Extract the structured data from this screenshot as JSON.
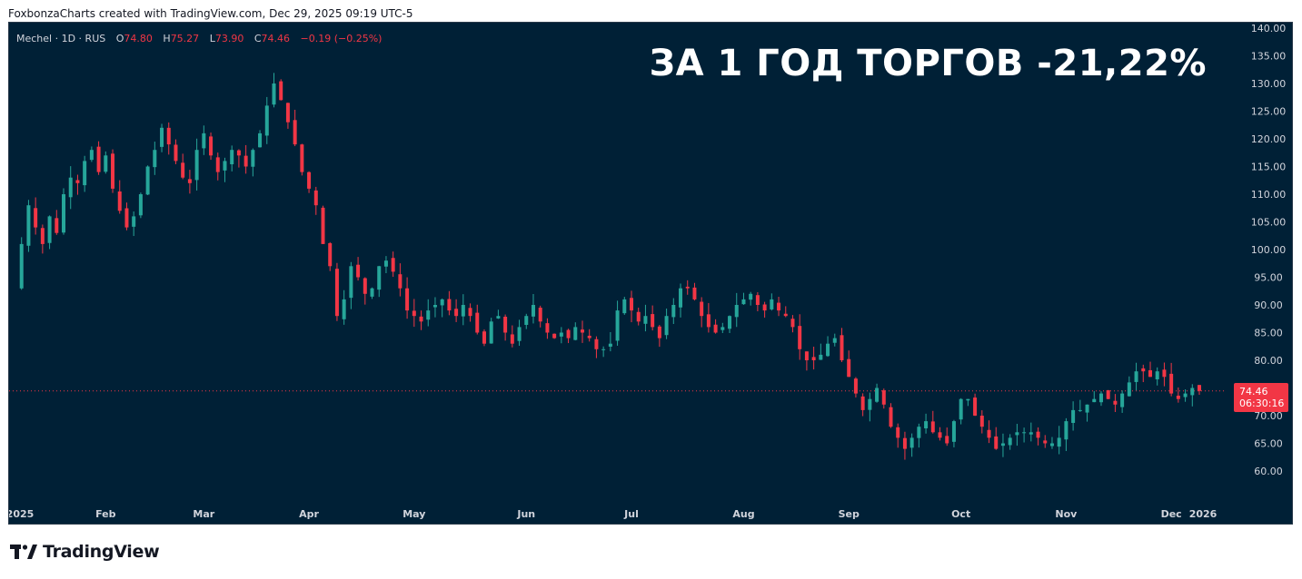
{
  "credit": "FoxbonzaCharts created with TradingView.com, Dec 29, 2025 09:19 UTC-5",
  "legend": {
    "symbol": "Mechel · 1D · RUS",
    "o_label": "O",
    "o": "74.80",
    "h_label": "H",
    "h": "75.27",
    "l_label": "L",
    "l": "73.90",
    "c_label": "C",
    "c": "74.46",
    "change": "−0.19 (−0.25%)"
  },
  "headline": "ЗА 1 ГОД ТОРГОВ -21,22%",
  "last_price": {
    "price": "74.46",
    "countdown": "06:30:16"
  },
  "logo": {
    "icon": "tradingview-logo-icon",
    "text": "TradingView"
  },
  "colors": {
    "background": "#002036",
    "up": "#26a69a",
    "down": "#f23645",
    "text": "#d1d4dc"
  },
  "chart_data": {
    "type": "candlestick",
    "ylim": [
      56,
      140
    ],
    "y_ticks": [
      "140.00",
      "135.00",
      "130.00",
      "125.00",
      "120.00",
      "115.00",
      "110.00",
      "105.00",
      "100.00",
      "95.00",
      "90.00",
      "85.00",
      "80.00",
      "75.00",
      "70.00",
      "65.00",
      "60.00"
    ],
    "x_ticks": [
      "2025",
      "Feb",
      "Mar",
      "Apr",
      "May",
      "Jun",
      "Jul",
      "Aug",
      "Sep",
      "Oct",
      "Nov",
      "Dec",
      "2026"
    ],
    "close_path": [
      [
        0,
        93
      ],
      [
        1,
        101
      ],
      [
        2,
        108
      ],
      [
        3,
        104
      ],
      [
        4,
        101
      ],
      [
        5,
        106
      ],
      [
        6,
        103
      ],
      [
        7,
        110
      ],
      [
        8,
        113
      ],
      [
        9,
        112
      ],
      [
        10,
        116
      ],
      [
        11,
        118
      ],
      [
        12,
        114
      ],
      [
        13,
        117
      ],
      [
        14,
        111
      ],
      [
        15,
        107
      ],
      [
        16,
        104
      ],
      [
        17,
        106
      ],
      [
        18,
        110
      ],
      [
        19,
        115
      ],
      [
        20,
        118
      ],
      [
        21,
        122
      ],
      [
        22,
        119
      ],
      [
        23,
        116
      ],
      [
        24,
        113
      ],
      [
        25,
        112
      ],
      [
        26,
        118
      ],
      [
        27,
        121
      ],
      [
        28,
        117
      ],
      [
        29,
        114
      ],
      [
        30,
        116
      ],
      [
        31,
        118
      ],
      [
        32,
        117
      ],
      [
        33,
        115
      ],
      [
        34,
        118
      ],
      [
        35,
        121
      ],
      [
        36,
        126
      ],
      [
        37,
        130
      ],
      [
        38,
        127
      ],
      [
        39,
        123
      ],
      [
        40,
        119
      ],
      [
        41,
        114
      ],
      [
        42,
        111
      ],
      [
        43,
        108
      ],
      [
        44,
        101
      ],
      [
        45,
        97
      ],
      [
        46,
        88
      ],
      [
        47,
        91
      ],
      [
        48,
        97
      ],
      [
        49,
        95
      ],
      [
        50,
        92
      ],
      [
        51,
        93
      ],
      [
        52,
        97
      ],
      [
        53,
        98
      ],
      [
        54,
        96
      ],
      [
        55,
        93
      ],
      [
        56,
        89
      ],
      [
        57,
        88
      ],
      [
        58,
        87
      ],
      [
        59,
        89
      ],
      [
        60,
        90
      ],
      [
        61,
        91
      ],
      [
        62,
        89
      ],
      [
        63,
        88
      ],
      [
        64,
        90
      ],
      [
        65,
        88
      ],
      [
        66,
        85
      ],
      [
        67,
        83
      ],
      [
        68,
        87
      ],
      [
        69,
        88
      ],
      [
        70,
        85
      ],
      [
        71,
        83
      ],
      [
        72,
        86
      ],
      [
        73,
        88
      ],
      [
        74,
        90
      ],
      [
        75,
        87
      ],
      [
        76,
        85
      ],
      [
        77,
        84
      ],
      [
        78,
        85
      ],
      [
        79,
        84
      ],
      [
        80,
        86
      ],
      [
        81,
        85
      ],
      [
        82,
        84
      ],
      [
        83,
        82
      ],
      [
        84,
        82
      ],
      [
        85,
        83
      ],
      [
        86,
        89
      ],
      [
        87,
        91
      ],
      [
        88,
        89
      ],
      [
        89,
        87
      ],
      [
        90,
        88
      ],
      [
        91,
        86
      ],
      [
        92,
        84
      ],
      [
        93,
        88
      ],
      [
        94,
        90
      ],
      [
        95,
        93
      ],
      [
        96,
        93
      ],
      [
        97,
        91
      ],
      [
        98,
        88
      ],
      [
        99,
        86
      ],
      [
        100,
        85
      ],
      [
        101,
        86
      ],
      [
        102,
        88
      ],
      [
        103,
        90
      ],
      [
        104,
        91
      ],
      [
        105,
        92
      ],
      [
        106,
        90
      ],
      [
        107,
        89
      ],
      [
        108,
        91
      ],
      [
        109,
        89
      ],
      [
        110,
        88
      ],
      [
        111,
        86
      ],
      [
        112,
        82
      ],
      [
        113,
        80
      ],
      [
        114,
        80
      ],
      [
        115,
        81
      ],
      [
        116,
        83
      ],
      [
        117,
        84
      ],
      [
        118,
        80
      ],
      [
        119,
        77
      ],
      [
        120,
        74
      ],
      [
        121,
        71
      ],
      [
        122,
        73
      ],
      [
        123,
        75
      ],
      [
        124,
        72
      ],
      [
        125,
        68
      ],
      [
        126,
        66
      ],
      [
        127,
        64
      ],
      [
        128,
        66
      ],
      [
        129,
        68
      ],
      [
        130,
        69
      ],
      [
        131,
        67
      ],
      [
        132,
        66
      ],
      [
        133,
        65
      ],
      [
        134,
        69
      ],
      [
        135,
        73
      ],
      [
        136,
        73
      ],
      [
        137,
        70
      ],
      [
        138,
        68
      ],
      [
        139,
        66
      ],
      [
        140,
        64
      ],
      [
        141,
        65
      ],
      [
        142,
        66
      ],
      [
        143,
        67
      ],
      [
        144,
        67
      ],
      [
        145,
        67
      ],
      [
        146,
        66
      ],
      [
        147,
        65
      ],
      [
        148,
        65
      ],
      [
        149,
        66
      ],
      [
        150,
        69
      ],
      [
        151,
        71
      ],
      [
        152,
        71
      ],
      [
        153,
        72
      ],
      [
        154,
        73
      ],
      [
        155,
        74
      ],
      [
        156,
        73
      ],
      [
        157,
        72
      ],
      [
        158,
        74
      ],
      [
        159,
        76
      ],
      [
        160,
        78
      ],
      [
        161,
        78
      ],
      [
        162,
        77
      ],
      [
        163,
        78
      ],
      [
        164,
        77
      ],
      [
        165,
        74
      ],
      [
        166,
        73
      ],
      [
        167,
        74
      ],
      [
        168,
        75
      ],
      [
        169,
        74.46
      ]
    ],
    "n_sessions": 169
  }
}
